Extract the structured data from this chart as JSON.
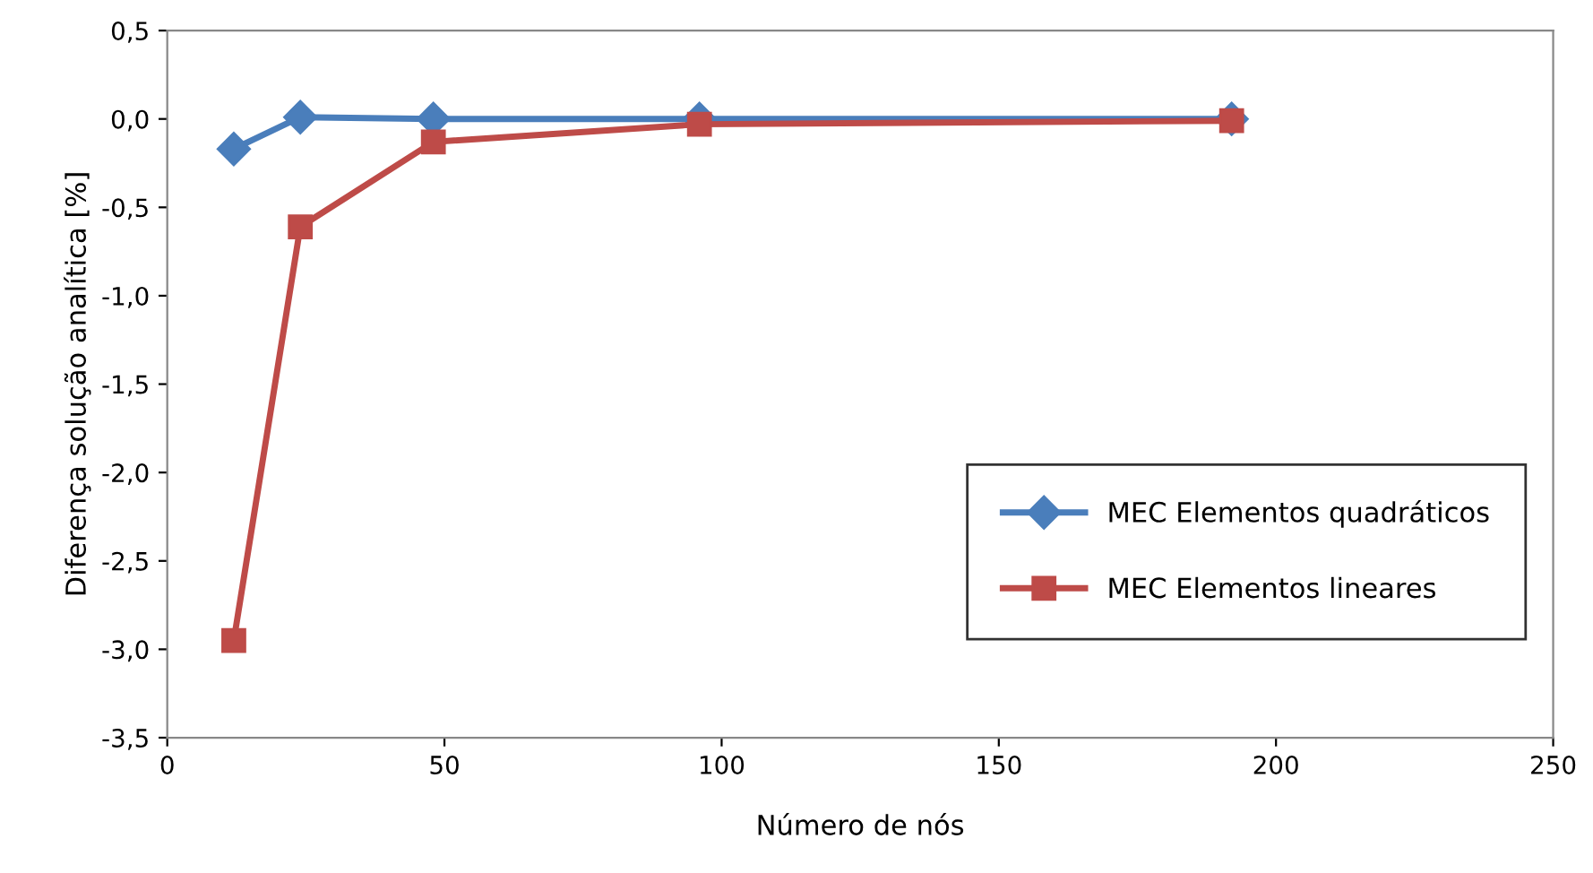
{
  "chart_data": {
    "type": "line",
    "xlabel": "Número de nós",
    "ylabel": "Diferença solução analítica [%]",
    "x": [
      12,
      24,
      48,
      96,
      192
    ],
    "series": [
      {
        "name": "MEC Elementos quadráticos",
        "color": "#4a7ebb",
        "marker": "diamond",
        "values": [
          -0.17,
          0.01,
          0.0,
          0.0,
          0.0
        ]
      },
      {
        "name": "MEC Elementos lineares",
        "color": "#be4b48",
        "marker": "square",
        "values": [
          -2.95,
          -0.61,
          -0.13,
          -0.03,
          -0.01
        ]
      }
    ],
    "xlim": [
      0,
      250
    ],
    "xticks": [
      0,
      50,
      100,
      150,
      200,
      250
    ],
    "ylim": [
      -3.5,
      0.5
    ],
    "yticks": [
      {
        "value": -3.5,
        "label": "-3,5"
      },
      {
        "value": -3.0,
        "label": "-3,0"
      },
      {
        "value": -2.5,
        "label": "-2,5"
      },
      {
        "value": -2.0,
        "label": "-2,0"
      },
      {
        "value": -1.5,
        "label": "-1,5"
      },
      {
        "value": -1.0,
        "label": "-1,0"
      },
      {
        "value": -0.5,
        "label": "-0,5"
      },
      {
        "value": 0.0,
        "label": "0,0"
      },
      {
        "value": 0.5,
        "label": "0,5"
      }
    ],
    "grid": false,
    "legend": "bottom right",
    "line_style": "solid"
  }
}
